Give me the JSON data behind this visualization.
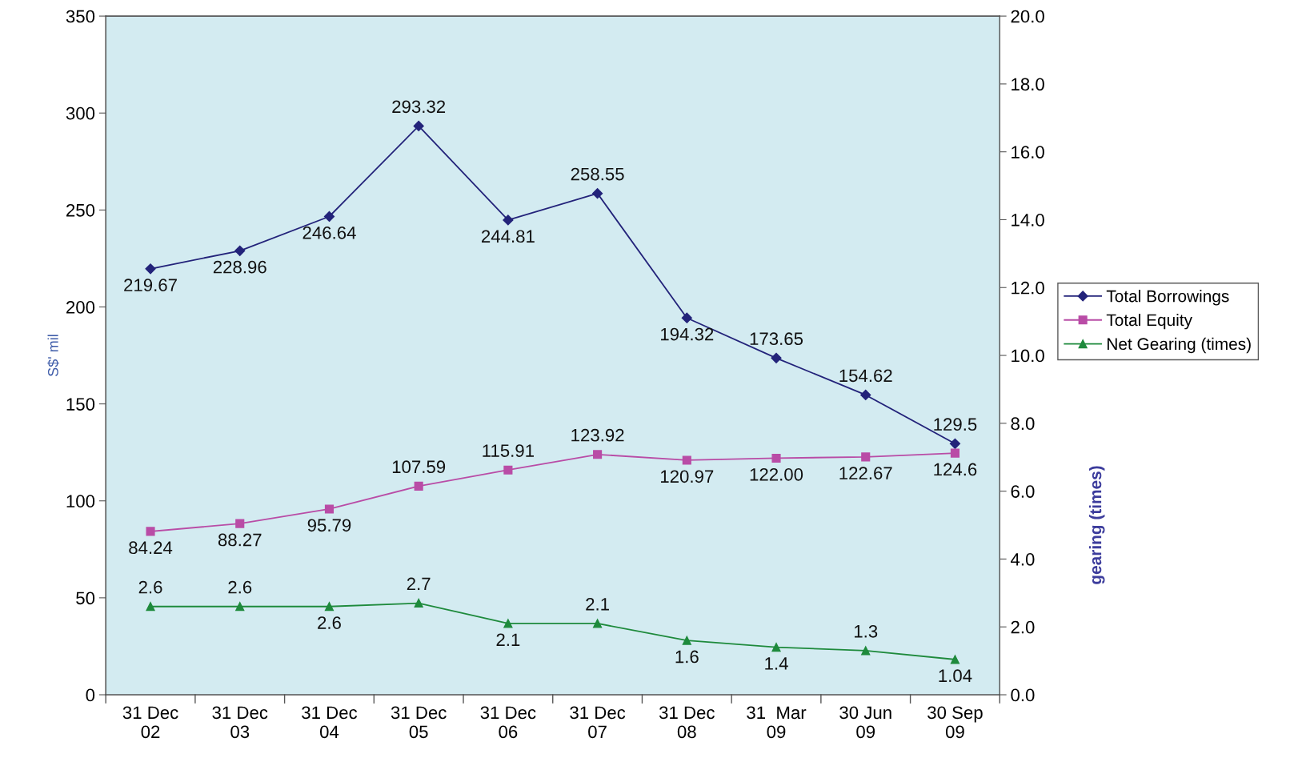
{
  "chart_data": {
    "type": "line",
    "categories": [
      "31 Dec\n02",
      "31 Dec\n03",
      "31 Dec\n04",
      "31 Dec\n05",
      "31 Dec\n06",
      "31 Dec\n07",
      "31 Dec\n08",
      "31  Mar\n09",
      "30 Jun\n09",
      "30 Sep\n09"
    ],
    "ylabel": "S$' mil",
    "y2label": "gearing (times)",
    "ylim": [
      0,
      350
    ],
    "yticks": [
      0,
      50,
      100,
      150,
      200,
      250,
      300,
      350
    ],
    "y2lim": [
      0,
      20
    ],
    "y2ticks": [
      {
        "value": 0,
        "label": "0.0"
      },
      {
        "value": 2,
        "label": "2.0"
      },
      {
        "value": 4,
        "label": "4.0"
      },
      {
        "value": 6,
        "label": "6.0"
      },
      {
        "value": 8,
        "label": "8.0"
      },
      {
        "value": 10,
        "label": "10.0"
      },
      {
        "value": 12,
        "label": "12.0"
      },
      {
        "value": 14,
        "label": "14.0"
      },
      {
        "value": 16,
        "label": "16.0"
      },
      {
        "value": 18,
        "label": "18.0"
      },
      {
        "value": 20,
        "label": "20.0"
      }
    ],
    "grid": false,
    "legend": "right",
    "line_style": "solid",
    "data_labels": true,
    "series": [
      {
        "name": "Total Borrowings",
        "color": "#23237a",
        "marker": "diamond",
        "values": [
          219.67,
          228.96,
          246.64,
          293.32,
          244.81,
          258.55,
          194.32,
          173.65,
          154.62,
          129.5
        ],
        "value_labels": [
          "219.67",
          "228.96",
          "246.64",
          "293.32",
          "244.81",
          "258.55",
          "194.32",
          "173.65",
          "154.62",
          "129.5"
        ]
      },
      {
        "name": "Total Equity",
        "color": "#b94ca6",
        "marker": "square",
        "values": [
          84.24,
          88.27,
          95.79,
          107.59,
          115.91,
          123.92,
          120.97,
          122.0,
          122.67,
          124.6
        ],
        "value_labels": [
          "84.24",
          "88.27",
          "95.79",
          "107.59",
          "115.91",
          "123.92",
          "120.97",
          "122.00",
          "122.67",
          "124.6"
        ]
      },
      {
        "name": "Net Gearing (times)",
        "color": "#1e8a3c",
        "marker": "triangle",
        "axis": "y2",
        "values": [
          2.6,
          2.6,
          2.6,
          2.7,
          2.1,
          2.1,
          1.6,
          1.4,
          1.3,
          1.04
        ],
        "value_labels": [
          "2.6",
          "2.6",
          "2.6",
          "2.7",
          "2.1",
          "2.1",
          "1.6",
          "1.4",
          "1.3",
          "1.04"
        ]
      }
    ]
  }
}
